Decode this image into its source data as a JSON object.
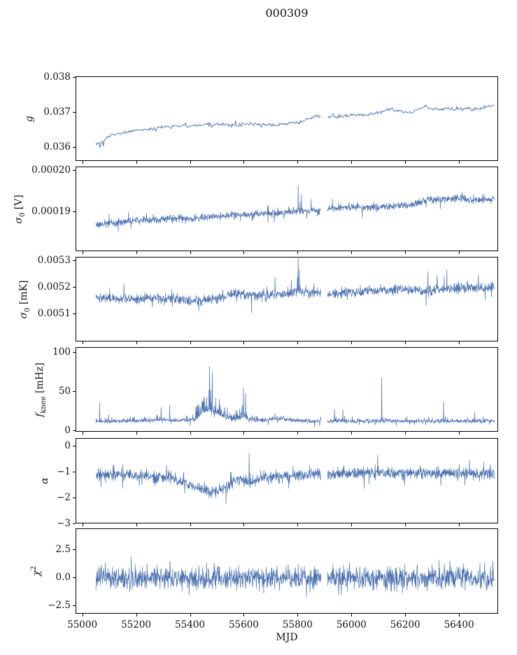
{
  "chart_data": {
    "type": "line",
    "title": "000309",
    "xlabel": "MJD",
    "line_color": "#4c72b0",
    "background": "#ffffff",
    "grid": false,
    "legend": "none",
    "xlim": [
      54975,
      56545
    ],
    "x_range_data": [
      55048,
      56528
    ],
    "data_gap": [
      55885,
      55908
    ],
    "xticks": [
      {
        "v": 55000,
        "label": "55000"
      },
      {
        "v": 55200,
        "label": "55200"
      },
      {
        "v": 55400,
        "label": "55400"
      },
      {
        "v": 55600,
        "label": "55600"
      },
      {
        "v": 55800,
        "label": "55800"
      },
      {
        "v": 56000,
        "label": "56000"
      },
      {
        "v": 56200,
        "label": "56200"
      },
      {
        "v": 56400,
        "label": "56400"
      }
    ],
    "panels": [
      {
        "name": "g",
        "ylabel": {
          "pre": "g",
          "sub": "",
          "sup": "",
          "post": ""
        },
        "ylim": [
          0.0356,
          0.03803
        ],
        "yticks": [
          {
            "v": 0.036,
            "label": "0.036"
          },
          {
            "v": 0.037,
            "label": "0.037"
          },
          {
            "v": 0.038,
            "label": "0.038"
          }
        ],
        "n_points": 480,
        "noise_amp": 5.5e-05,
        "tail_amp": 0.00012,
        "tail_prob": 0.02,
        "trend": [
          [
            55048,
            0.0361
          ],
          [
            55070,
            0.03615
          ],
          [
            55100,
            0.03635
          ],
          [
            55160,
            0.03645
          ],
          [
            55200,
            0.0365
          ],
          [
            55260,
            0.03655
          ],
          [
            55310,
            0.0366
          ],
          [
            55400,
            0.03665
          ],
          [
            55470,
            0.03668
          ],
          [
            55520,
            0.03668
          ],
          [
            55560,
            0.03662
          ],
          [
            55620,
            0.03668
          ],
          [
            55680,
            0.03665
          ],
          [
            55740,
            0.03668
          ],
          [
            55790,
            0.0367
          ],
          [
            55830,
            0.03678
          ],
          [
            55860,
            0.0369
          ],
          [
            55900,
            0.03692
          ],
          [
            55950,
            0.0369
          ],
          [
            56000,
            0.03692
          ],
          [
            56060,
            0.03695
          ],
          [
            56100,
            0.037
          ],
          [
            56140,
            0.0371
          ],
          [
            56170,
            0.03705
          ],
          [
            56200,
            0.037
          ],
          [
            56230,
            0.03705
          ],
          [
            56270,
            0.03718
          ],
          [
            56300,
            0.0371
          ],
          [
            56330,
            0.03712
          ],
          [
            56370,
            0.0371
          ],
          [
            56420,
            0.03712
          ],
          [
            56470,
            0.03712
          ],
          [
            56528,
            0.03722
          ]
        ],
        "spikes": [
          [
            55062,
            0.036
          ],
          [
            55075,
            0.03604
          ]
        ]
      },
      {
        "name": "sigma0-V",
        "ylabel": {
          "pre": "σ",
          "sub": "0",
          "sup": "",
          "post": " [V]"
        },
        "ylim": [
          0.0001803,
          0.0002008
        ],
        "yticks": [
          {
            "v": 0.00019,
            "label": "0.00019"
          },
          {
            "v": 0.0002,
            "label": "0.00020"
          }
        ],
        "n_points": 1480,
        "noise_amp": 9e-07,
        "tail_amp": 2.3e-06,
        "tail_prob": 0.03,
        "trend": [
          [
            55048,
            0.0001868
          ],
          [
            55120,
            0.0001872
          ],
          [
            55180,
            0.0001878
          ],
          [
            55250,
            0.000188
          ],
          [
            55320,
            0.0001884
          ],
          [
            55360,
            0.0001886
          ],
          [
            55390,
            0.0001882
          ],
          [
            55420,
            0.0001884
          ],
          [
            55480,
            0.0001888
          ],
          [
            55560,
            0.0001892
          ],
          [
            55620,
            0.0001894
          ],
          [
            55680,
            0.0001896
          ],
          [
            55740,
            0.0001899
          ],
          [
            55800,
            0.0001902
          ],
          [
            55860,
            0.0001903
          ],
          [
            55910,
            0.0001908
          ],
          [
            55960,
            0.000191
          ],
          [
            56020,
            0.0001911
          ],
          [
            56080,
            0.000191
          ],
          [
            56140,
            0.0001913
          ],
          [
            56200,
            0.0001916
          ],
          [
            56240,
            0.000192
          ],
          [
            56270,
            0.0001928
          ],
          [
            56310,
            0.0001932
          ],
          [
            56350,
            0.000193
          ],
          [
            56400,
            0.0001932
          ],
          [
            56450,
            0.0001929
          ],
          [
            56490,
            0.0001931
          ],
          [
            56528,
            0.0001931
          ]
        ],
        "spikes": [
          [
            55800,
            0.0001965
          ],
          [
            55812,
            0.0001943
          ]
        ]
      },
      {
        "name": "sigma0-mK",
        "ylabel": {
          "pre": "σ",
          "sub": "0",
          "sup": "",
          "post": " [mK]"
        },
        "ylim": [
          0.004995,
          0.005313
        ],
        "yticks": [
          {
            "v": 0.0051,
            "label": "0.0051"
          },
          {
            "v": 0.0052,
            "label": "0.0052"
          },
          {
            "v": 0.0053,
            "label": "0.0053"
          }
        ],
        "n_points": 1480,
        "noise_amp": 1.9e-05,
        "tail_amp": 5e-05,
        "tail_prob": 0.035,
        "trend": [
          [
            55048,
            0.005162
          ],
          [
            55120,
            0.005158
          ],
          [
            55200,
            0.005158
          ],
          [
            55260,
            0.005162
          ],
          [
            55330,
            0.005158
          ],
          [
            55400,
            0.005152
          ],
          [
            55450,
            0.00515
          ],
          [
            55500,
            0.005158
          ],
          [
            55540,
            0.00517
          ],
          [
            55580,
            0.005178
          ],
          [
            55620,
            0.005172
          ],
          [
            55700,
            0.005172
          ],
          [
            55760,
            0.005178
          ],
          [
            55800,
            0.005185
          ],
          [
            55850,
            0.00518
          ],
          [
            55910,
            0.005178
          ],
          [
            55970,
            0.005182
          ],
          [
            56030,
            0.005185
          ],
          [
            56090,
            0.005188
          ],
          [
            56150,
            0.005192
          ],
          [
            56210,
            0.005192
          ],
          [
            56270,
            0.00519
          ],
          [
            56330,
            0.005193
          ],
          [
            56400,
            0.005198
          ],
          [
            56470,
            0.005197
          ],
          [
            56528,
            0.0052
          ]
        ],
        "spikes": [
          [
            55797,
            0.00524
          ],
          [
            55800,
            0.00531
          ],
          [
            55804,
            0.00527
          ],
          [
            56282,
            0.00526
          ],
          [
            56352,
            0.005268
          ]
        ]
      },
      {
        "name": "fknee",
        "ylabel": {
          "pre": "f",
          "sub": "knee",
          "sup": "",
          "post": " [mHz]"
        },
        "ylim": [
          -2,
          106
        ],
        "yticks": [
          {
            "v": 0,
            "label": "0"
          },
          {
            "v": 50,
            "label": "50"
          },
          {
            "v": 100,
            "label": "100"
          }
        ],
        "n_points": 1480,
        "noise_amp": 2.2,
        "tail_amp": 6,
        "tail_prob": 0.05,
        "spike_amp": [
          [
            55048,
            3
          ],
          [
            55400,
            3
          ],
          [
            55430,
            22
          ],
          [
            55460,
            28
          ],
          [
            55490,
            26
          ],
          [
            55520,
            16
          ],
          [
            55545,
            8
          ],
          [
            55575,
            12
          ],
          [
            55600,
            16
          ],
          [
            55615,
            10
          ],
          [
            55640,
            4
          ],
          [
            55700,
            4
          ],
          [
            55730,
            5
          ],
          [
            55760,
            4
          ],
          [
            55800,
            3
          ],
          [
            56528,
            3
          ]
        ],
        "trend": [
          [
            55048,
            12
          ],
          [
            55150,
            12
          ],
          [
            55250,
            13
          ],
          [
            55290,
            14
          ],
          [
            55330,
            13
          ],
          [
            55400,
            13
          ],
          [
            55425,
            16
          ],
          [
            55445,
            24
          ],
          [
            55470,
            26
          ],
          [
            55500,
            22
          ],
          [
            55530,
            17
          ],
          [
            55555,
            14
          ],
          [
            55580,
            16
          ],
          [
            55600,
            18
          ],
          [
            55620,
            14
          ],
          [
            55660,
            13
          ],
          [
            55700,
            14
          ],
          [
            55740,
            15
          ],
          [
            55780,
            13
          ],
          [
            55850,
            12
          ],
          [
            55950,
            12
          ],
          [
            56100,
            12
          ],
          [
            56250,
            12
          ],
          [
            56400,
            12
          ],
          [
            56528,
            12
          ]
        ],
        "spikes": [
          [
            55062,
            36
          ],
          [
            55290,
            30
          ],
          [
            55322,
            33
          ],
          [
            55470,
            82
          ],
          [
            55480,
            75
          ],
          [
            55596,
            55
          ],
          [
            55604,
            48
          ],
          [
            55935,
            28
          ],
          [
            55966,
            27
          ],
          [
            56110,
            68
          ],
          [
            56340,
            38
          ],
          [
            56456,
            24
          ]
        ]
      },
      {
        "name": "alpha",
        "ylabel": {
          "pre": "α",
          "sub": "",
          "sup": "",
          "post": ""
        },
        "ylim": [
          -3.0,
          0.3
        ],
        "yticks": [
          {
            "v": 0,
            "label": "0"
          },
          {
            "v": -1,
            "label": "−1"
          },
          {
            "v": -2,
            "label": "−2"
          },
          {
            "v": -3,
            "label": "−3"
          }
        ],
        "n_points": 1480,
        "noise_amp": 0.22,
        "tail_amp": 0.45,
        "tail_prob": 0.06,
        "trend": [
          [
            55048,
            -1.05
          ],
          [
            55150,
            -1.08
          ],
          [
            55220,
            -1.12
          ],
          [
            55270,
            -1.22
          ],
          [
            55300,
            -1.12
          ],
          [
            55330,
            -1.18
          ],
          [
            55360,
            -1.35
          ],
          [
            55390,
            -1.45
          ],
          [
            55420,
            -1.55
          ],
          [
            55450,
            -1.7
          ],
          [
            55480,
            -1.72
          ],
          [
            55510,
            -1.65
          ],
          [
            55540,
            -1.5
          ],
          [
            55565,
            -1.3
          ],
          [
            55590,
            -1.28
          ],
          [
            55615,
            -1.4
          ],
          [
            55640,
            -1.25
          ],
          [
            55680,
            -1.18
          ],
          [
            55720,
            -1.18
          ],
          [
            55760,
            -1.12
          ],
          [
            55800,
            -1.12
          ],
          [
            55850,
            -1.08
          ],
          [
            55910,
            -1.05
          ],
          [
            56000,
            -1.05
          ],
          [
            56080,
            -1.02
          ],
          [
            56160,
            -1.05
          ],
          [
            56240,
            -1.02
          ],
          [
            56320,
            -1.05
          ],
          [
            56400,
            -1.03
          ],
          [
            56470,
            -1.05
          ],
          [
            56528,
            -1.03
          ]
        ],
        "spikes": [
          [
            55617,
            -0.25
          ],
          [
            56095,
            -0.32
          ]
        ]
      },
      {
        "name": "chi2",
        "ylabel": {
          "pre": "χ",
          "sub": "",
          "sup": "2",
          "post": ""
        },
        "ylim": [
          -3.25,
          4.375
        ],
        "yticks": [
          {
            "v": 2.5,
            "label": "2.5"
          },
          {
            "v": 0.0,
            "label": "0.0"
          },
          {
            "v": -2.5,
            "label": "−2.5"
          }
        ],
        "n_points": 1480,
        "noise_amp": 1.05,
        "tail_amp": 0.8,
        "tail_prob": 0.08,
        "trend": [
          [
            55048,
            0
          ],
          [
            56528,
            0
          ]
        ],
        "spikes": []
      }
    ]
  }
}
